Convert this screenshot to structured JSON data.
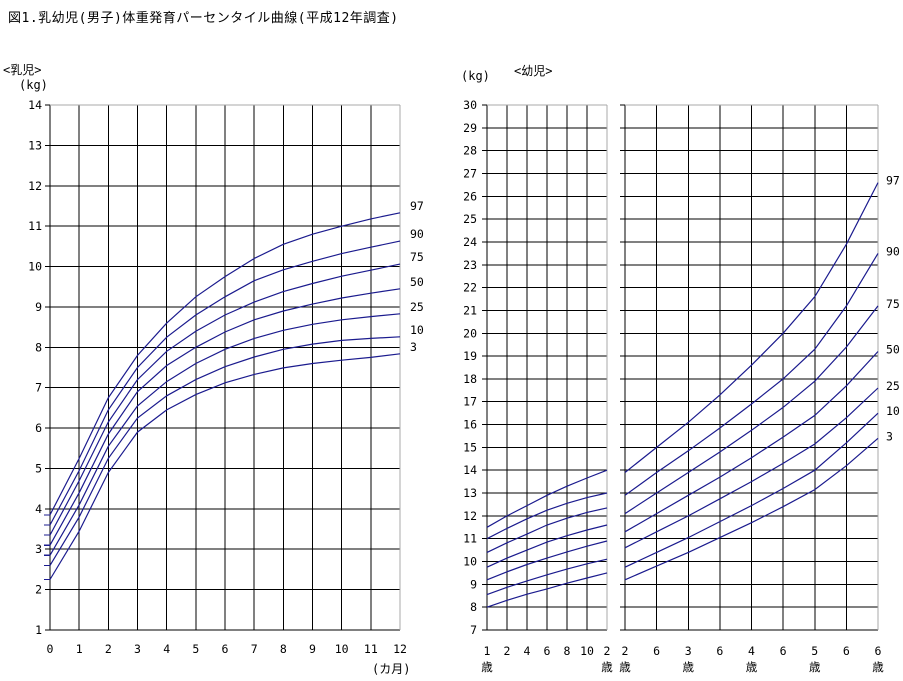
{
  "title": "図1.乳幼児(男子)体重発育パーセンタイル曲線(平成12年調査)",
  "labels": {
    "infant_section": "<乳児>",
    "kg_left": "(kg)",
    "kg_right": "(kg)",
    "toddler_section": "<幼児>",
    "months_unit": "(カ月)"
  },
  "percentile_labels": [
    "97",
    "90",
    "75",
    "50",
    "25",
    "10",
    "3"
  ],
  "colors": {
    "curve": "#1b1b8e",
    "grid": "#000000",
    "border_light": "#a8a8a8",
    "text": "#000000"
  },
  "chart_data": [
    {
      "id": "infant",
      "type": "line",
      "title": "<乳児> 体重 (kg) 0〜12カ月",
      "xlabel": "(カ月)",
      "ylabel": "(kg)",
      "xlim": [
        0,
        12
      ],
      "ylim": [
        1,
        14
      ],
      "grid": true,
      "x_ticks": [
        0,
        1,
        2,
        3,
        4,
        5,
        6,
        7,
        8,
        9,
        10,
        11,
        12
      ],
      "x_tick_labels": [
        [
          "0"
        ],
        [
          "1"
        ],
        [
          "2"
        ],
        [
          "3"
        ],
        [
          "4"
        ],
        [
          "5"
        ],
        [
          "6"
        ],
        [
          "7"
        ],
        [
          "8"
        ],
        [
          "9"
        ],
        [
          "10"
        ],
        [
          "11"
        ],
        [
          "12"
        ]
      ],
      "y_ticks": [
        14,
        13,
        12,
        11,
        10,
        9,
        8,
        7,
        6,
        5,
        4,
        3,
        2,
        1
      ],
      "series": [
        {
          "name": "97",
          "values": [
            3.85,
            5.25,
            6.75,
            7.8,
            8.6,
            9.25,
            9.75,
            10.2,
            10.55,
            10.8,
            11.0,
            11.18,
            11.33
          ]
        },
        {
          "name": "90",
          "values": [
            3.6,
            4.95,
            6.45,
            7.5,
            8.25,
            8.8,
            9.25,
            9.65,
            9.92,
            10.13,
            10.32,
            10.48,
            10.63
          ]
        },
        {
          "name": "75",
          "values": [
            3.35,
            4.7,
            6.15,
            7.2,
            7.9,
            8.4,
            8.8,
            9.12,
            9.38,
            9.58,
            9.76,
            9.91,
            10.06
          ]
        },
        {
          "name": "50",
          "values": [
            3.1,
            4.4,
            5.85,
            6.9,
            7.55,
            8.0,
            8.38,
            8.68,
            8.9,
            9.07,
            9.22,
            9.34,
            9.45
          ]
        },
        {
          "name": "25",
          "values": [
            2.85,
            4.1,
            5.55,
            6.55,
            7.15,
            7.6,
            7.95,
            8.22,
            8.42,
            8.57,
            8.68,
            8.76,
            8.83
          ]
        },
        {
          "name": "10",
          "values": [
            2.6,
            3.8,
            5.25,
            6.25,
            6.8,
            7.2,
            7.52,
            7.76,
            7.95,
            8.08,
            8.17,
            8.22,
            8.26
          ]
        },
        {
          "name": "3",
          "values": [
            2.25,
            3.45,
            4.9,
            5.9,
            6.45,
            6.83,
            7.12,
            7.33,
            7.49,
            7.6,
            7.68,
            7.75,
            7.84
          ]
        }
      ],
      "legend_position": "right"
    },
    {
      "id": "toddler-1-2",
      "type": "line",
      "title": "<幼児> 体重 (kg) 1歳〜2歳",
      "xlabel": "歳",
      "ylabel": "(kg)",
      "xlim": [
        12,
        24
      ],
      "ylim": [
        7,
        30
      ],
      "grid": true,
      "x_ticks": [
        12,
        14,
        16,
        18,
        20,
        22,
        24
      ],
      "x_tick_labels": [
        [
          "1",
          "歳"
        ],
        [
          "2"
        ],
        [
          "4"
        ],
        [
          "6"
        ],
        [
          "8"
        ],
        [
          "10"
        ],
        [
          "2",
          "歳"
        ]
      ],
      "y_ticks": [
        30,
        29,
        28,
        27,
        26,
        25,
        24,
        23,
        22,
        21,
        20,
        19,
        18,
        17,
        16,
        15,
        14,
        13,
        12,
        11,
        10,
        9,
        8,
        7
      ],
      "series": [
        {
          "name": "97",
          "values": [
            11.5,
            12.0,
            12.45,
            12.9,
            13.3,
            13.66,
            14.0
          ]
        },
        {
          "name": "90",
          "values": [
            11.0,
            11.45,
            11.87,
            12.25,
            12.55,
            12.8,
            13.0
          ]
        },
        {
          "name": "75",
          "values": [
            10.4,
            10.82,
            11.2,
            11.6,
            11.9,
            12.15,
            12.35
          ]
        },
        {
          "name": "50",
          "values": [
            9.75,
            10.15,
            10.5,
            10.85,
            11.13,
            11.38,
            11.6
          ]
        },
        {
          "name": "25",
          "values": [
            9.2,
            9.55,
            9.87,
            10.15,
            10.42,
            10.67,
            10.9
          ]
        },
        {
          "name": "10",
          "values": [
            8.55,
            8.87,
            9.15,
            9.42,
            9.67,
            9.9,
            10.1
          ]
        },
        {
          "name": "3",
          "values": [
            8.0,
            8.3,
            8.57,
            8.8,
            9.05,
            9.28,
            9.5
          ]
        }
      ],
      "legend_position": "none"
    },
    {
      "id": "toddler-2-6",
      "type": "line",
      "title": "<幼児> 体重 (kg) 2歳〜6歳",
      "xlabel": "歳",
      "ylabel": "(kg)",
      "xlim": [
        2,
        6
      ],
      "ylim": [
        7,
        30
      ],
      "grid": true,
      "x_ticks": [
        2,
        2.5,
        3,
        3.5,
        4,
        4.5,
        5,
        5.5,
        6
      ],
      "x_tick_labels": [
        [
          "2",
          "歳"
        ],
        [
          "6"
        ],
        [
          "3",
          "歳"
        ],
        [
          "6"
        ],
        [
          "4",
          "歳"
        ],
        [
          "6"
        ],
        [
          "5",
          "歳"
        ],
        [
          "6"
        ],
        [
          "6",
          "歳"
        ]
      ],
      "y_ticks": [
        30,
        29,
        28,
        27,
        26,
        25,
        24,
        23,
        22,
        21,
        20,
        19,
        18,
        17,
        16,
        15,
        14,
        13,
        12,
        11,
        10,
        9,
        8,
        7
      ],
      "y_tick_labels_visible": false,
      "series": [
        {
          "name": "97",
          "values": [
            13.9,
            15.0,
            16.1,
            17.3,
            18.6,
            20.0,
            21.6,
            23.9,
            26.6
          ]
        },
        {
          "name": "90",
          "values": [
            12.9,
            13.9,
            14.85,
            15.85,
            16.9,
            18.0,
            19.3,
            21.2,
            23.5
          ]
        },
        {
          "name": "75",
          "values": [
            12.1,
            13.0,
            13.9,
            14.8,
            15.75,
            16.75,
            17.9,
            19.4,
            21.2
          ]
        },
        {
          "name": "50",
          "values": [
            11.3,
            12.1,
            12.9,
            13.7,
            14.55,
            15.45,
            16.4,
            17.7,
            19.2
          ]
        },
        {
          "name": "25",
          "values": [
            10.6,
            11.3,
            12.0,
            12.75,
            13.5,
            14.3,
            15.15,
            16.3,
            17.6
          ]
        },
        {
          "name": "10",
          "values": [
            9.75,
            10.4,
            11.05,
            11.75,
            12.45,
            13.2,
            14.0,
            15.2,
            16.5
          ]
        },
        {
          "name": "3",
          "values": [
            9.2,
            9.8,
            10.4,
            11.05,
            11.7,
            12.4,
            13.15,
            14.2,
            15.4
          ]
        }
      ],
      "legend_position": "right"
    }
  ]
}
